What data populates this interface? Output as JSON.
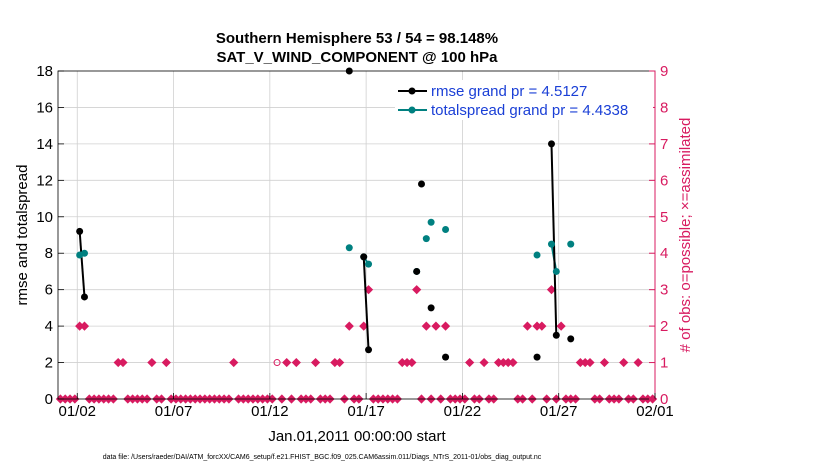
{
  "colors": {
    "rmse": "#000000",
    "totalspread": "#008080",
    "obs": "#d81b60",
    "grid": "#d0d0d0",
    "legend_text": "#1a3fd6",
    "axis": "#000000"
  },
  "chart_data": {
    "type": "line",
    "title": "Southern Hemisphere 53 / 54 = 98.148%",
    "subtitle": "SAT_V_WIND_COMPONENT @ 100 hPa",
    "xlabel": "Jan.01,2011 00:00:00 start",
    "ylabel": "rmse and totalspread",
    "y2label": "# of obs: o=possible; ×=assimilated",
    "footer": "data file: /Users/raeder/DAI/ATM_forcXX/CAM6_setup/f.e21.FHIST_BGC.f09_025.CAM6assim.011/Diags_NTrS_2011-01/obs_diag_output.nc",
    "xlim": [
      0.5,
      31.5
    ],
    "ylim": [
      0,
      18
    ],
    "y2lim": [
      0,
      9
    ],
    "xticks": [
      1.5,
      6.5,
      11.5,
      16.5,
      21.5,
      26.5,
      31.5
    ],
    "xtick_labels": [
      "01/02",
      "01/07",
      "01/12",
      "01/17",
      "01/22",
      "01/27",
      "02/01"
    ],
    "yticks": [
      0,
      2,
      4,
      6,
      8,
      10,
      12,
      14,
      16,
      18
    ],
    "y2ticks": [
      0,
      1,
      2,
      3,
      4,
      5,
      6,
      7,
      8,
      9
    ],
    "series": [
      {
        "name": "rmse",
        "legend": "rmse grand pr = 4.5127",
        "points": [
          [
            1.625,
            9.2
          ],
          [
            1.875,
            5.6
          ],
          [
            15.625,
            18.0
          ],
          [
            16.375,
            7.8
          ],
          [
            16.625,
            2.7
          ],
          [
            19.125,
            7.0
          ],
          [
            19.375,
            11.8
          ],
          [
            19.875,
            5.0
          ],
          [
            20.625,
            2.3
          ],
          [
            25.375,
            2.3
          ],
          [
            26.125,
            14.0
          ],
          [
            26.375,
            3.5
          ],
          [
            27.125,
            3.3
          ]
        ],
        "segments": [
          [
            [
              1.625,
              9.2
            ],
            [
              1.875,
              5.6
            ]
          ],
          [
            [
              16.375,
              7.8
            ],
            [
              16.625,
              2.7
            ]
          ],
          [
            [
              26.125,
              14.0
            ],
            [
              26.375,
              3.5
            ]
          ]
        ]
      },
      {
        "name": "totalspread",
        "legend": "totalspread grand pr = 4.4338",
        "points": [
          [
            1.625,
            7.9
          ],
          [
            1.875,
            8.0
          ],
          [
            15.625,
            8.3
          ],
          [
            16.375,
            7.8
          ],
          [
            16.625,
            7.4
          ],
          [
            19.125,
            7.0
          ],
          [
            19.625,
            8.8
          ],
          [
            19.875,
            9.7
          ],
          [
            20.625,
            9.3
          ],
          [
            25.375,
            7.9
          ],
          [
            26.125,
            8.5
          ],
          [
            26.375,
            7.0
          ],
          [
            27.125,
            8.5
          ]
        ],
        "segments": [
          [
            [
              1.625,
              7.9
            ],
            [
              1.875,
              8.0
            ]
          ],
          [
            [
              16.375,
              7.8
            ],
            [
              16.625,
              7.4
            ]
          ],
          [
            [
              26.125,
              8.5
            ],
            [
              26.375,
              7.0
            ]
          ]
        ]
      },
      {
        "name": "obs_possible",
        "points": [
          [
            11.875,
            1
          ]
        ]
      },
      {
        "name": "obs_assimilated",
        "points": [
          [
            0.625,
            0
          ],
          [
            0.875,
            0
          ],
          [
            1.125,
            0
          ],
          [
            1.375,
            0
          ],
          [
            1.625,
            2
          ],
          [
            1.875,
            2
          ],
          [
            2.125,
            0
          ],
          [
            2.375,
            0
          ],
          [
            2.625,
            0
          ],
          [
            2.875,
            0
          ],
          [
            3.125,
            0
          ],
          [
            3.375,
            0
          ],
          [
            3.625,
            1
          ],
          [
            3.875,
            1
          ],
          [
            4.125,
            0
          ],
          [
            4.375,
            0
          ],
          [
            4.625,
            0
          ],
          [
            4.875,
            0
          ],
          [
            5.125,
            0
          ],
          [
            5.375,
            1
          ],
          [
            5.625,
            0
          ],
          [
            5.875,
            0
          ],
          [
            6.125,
            1
          ],
          [
            6.375,
            0
          ],
          [
            6.625,
            0
          ],
          [
            6.875,
            0
          ],
          [
            7.125,
            0
          ],
          [
            7.375,
            0
          ],
          [
            7.625,
            0
          ],
          [
            7.875,
            0
          ],
          [
            8.125,
            0
          ],
          [
            8.375,
            0
          ],
          [
            8.625,
            0
          ],
          [
            8.875,
            0
          ],
          [
            9.125,
            0
          ],
          [
            9.375,
            0
          ],
          [
            9.625,
            1
          ],
          [
            9.875,
            0
          ],
          [
            10.125,
            0
          ],
          [
            10.375,
            0
          ],
          [
            10.625,
            0
          ],
          [
            10.875,
            0
          ],
          [
            11.125,
            0
          ],
          [
            11.375,
            0
          ],
          [
            11.625,
            0
          ],
          [
            12.125,
            0
          ],
          [
            12.375,
            1
          ],
          [
            12.625,
            0
          ],
          [
            12.875,
            1
          ],
          [
            13.125,
            0
          ],
          [
            13.375,
            0
          ],
          [
            13.625,
            0
          ],
          [
            13.875,
            1
          ],
          [
            14.125,
            0
          ],
          [
            14.375,
            0
          ],
          [
            14.625,
            0
          ],
          [
            14.875,
            1
          ],
          [
            15.125,
            1
          ],
          [
            15.375,
            0
          ],
          [
            15.625,
            2
          ],
          [
            15.875,
            0
          ],
          [
            16.125,
            0
          ],
          [
            16.375,
            2
          ],
          [
            16.625,
            3
          ],
          [
            16.875,
            0
          ],
          [
            17.125,
            0
          ],
          [
            17.375,
            0
          ],
          [
            17.625,
            0
          ],
          [
            17.875,
            0
          ],
          [
            18.125,
            0
          ],
          [
            18.375,
            1
          ],
          [
            18.625,
            1
          ],
          [
            18.875,
            1
          ],
          [
            19.125,
            3
          ],
          [
            19.375,
            0
          ],
          [
            19.625,
            2
          ],
          [
            19.875,
            0
          ],
          [
            20.125,
            2
          ],
          [
            20.375,
            0
          ],
          [
            20.625,
            2
          ],
          [
            20.875,
            0
          ],
          [
            21.125,
            0
          ],
          [
            21.375,
            0
          ],
          [
            21.625,
            0
          ],
          [
            21.875,
            1
          ],
          [
            22.125,
            0
          ],
          [
            22.375,
            0
          ],
          [
            22.625,
            1
          ],
          [
            22.875,
            0
          ],
          [
            23.125,
            0
          ],
          [
            23.375,
            1
          ],
          [
            23.625,
            1
          ],
          [
            23.875,
            1
          ],
          [
            24.125,
            1
          ],
          [
            24.375,
            0
          ],
          [
            24.625,
            0
          ],
          [
            24.875,
            2
          ],
          [
            25.125,
            0
          ],
          [
            25.375,
            2
          ],
          [
            25.625,
            2
          ],
          [
            25.875,
            0
          ],
          [
            26.125,
            3
          ],
          [
            26.375,
            0
          ],
          [
            26.625,
            2
          ],
          [
            26.875,
            0
          ],
          [
            27.125,
            0
          ],
          [
            27.375,
            0
          ],
          [
            27.625,
            1
          ],
          [
            27.875,
            1
          ],
          [
            28.125,
            1
          ],
          [
            28.375,
            0
          ],
          [
            28.625,
            0
          ],
          [
            28.875,
            1
          ],
          [
            29.125,
            0
          ],
          [
            29.375,
            0
          ],
          [
            29.625,
            0
          ],
          [
            29.875,
            1
          ],
          [
            30.125,
            0
          ],
          [
            30.375,
            0
          ],
          [
            30.625,
            1
          ],
          [
            30.875,
            0
          ],
          [
            31.125,
            0
          ],
          [
            31.375,
            0
          ]
        ]
      }
    ]
  }
}
